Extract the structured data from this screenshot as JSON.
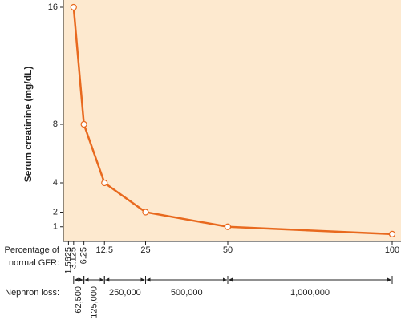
{
  "chart_data": {
    "type": "line",
    "y_label": "Serum creatinine (mg/dL)",
    "x_label": [
      "Percentage of",
      "normal GFR:"
    ],
    "x": [
      3.125,
      6.25,
      12.5,
      25,
      50,
      100
    ],
    "values": [
      16,
      8,
      4,
      2,
      1,
      0.5
    ],
    "color": "#e8691e",
    "background": "#fde9cf",
    "xlim": [
      0,
      100
    ],
    "xticks": [
      1.5625,
      3.125,
      6.25,
      12.5,
      25,
      50,
      100
    ],
    "ylim": [
      0,
      16
    ],
    "yticks": [
      1,
      2,
      4,
      8,
      16
    ],
    "nephron_loss": {
      "label": "Nephron loss:",
      "segments": [
        {
          "label": "62,500",
          "from": 3.125,
          "to": 6.25
        },
        {
          "label": "125,000",
          "from": 6.25,
          "to": 12.5
        },
        {
          "label": "250,000",
          "from": 12.5,
          "to": 25
        },
        {
          "label": "500,000",
          "from": 25,
          "to": 50
        },
        {
          "label": "1,000,000",
          "from": 50,
          "to": 100
        }
      ]
    }
  }
}
